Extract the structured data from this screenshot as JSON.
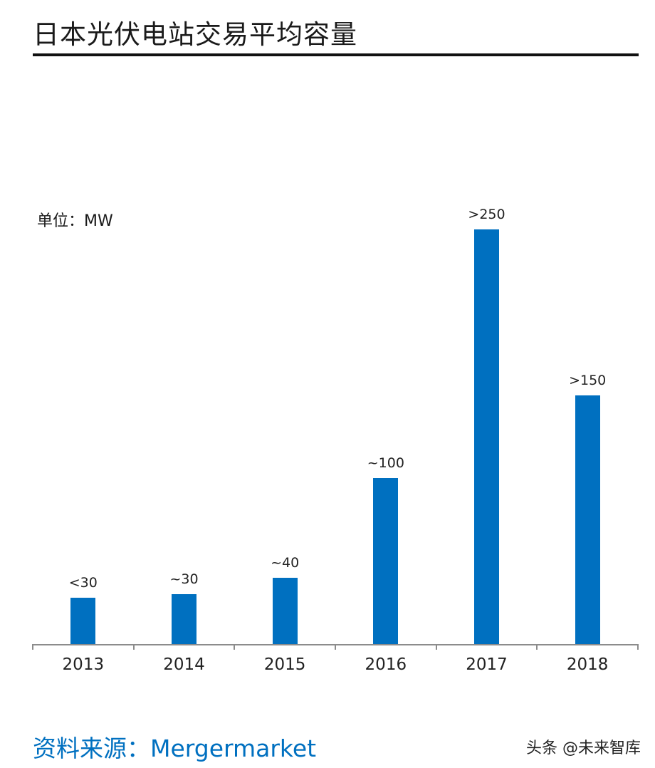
{
  "header": {
    "title": "日本光伏电站交易平均容量"
  },
  "unit_label": "单位：MW",
  "source": "资料来源：Mergermarket",
  "watermark": "头条 @未来智库",
  "colors": {
    "bar": "#0070c0",
    "axis": "#8c8c8c",
    "source_text": "#0070c0"
  },
  "chart_data": {
    "type": "bar",
    "title": "日本光伏电站交易平均容量",
    "xlabel": "",
    "ylabel": "单位：MW",
    "categories": [
      "2013",
      "2014",
      "2015",
      "2016",
      "2017",
      "2018"
    ],
    "values": [
      28,
      30,
      40,
      100,
      250,
      150
    ],
    "data_labels": [
      "<30",
      "~30",
      "~40",
      "~100",
      ">250",
      ">150"
    ],
    "ylim": [
      0,
      270
    ],
    "grid": false,
    "legend": null,
    "source": "Mergermarket"
  }
}
